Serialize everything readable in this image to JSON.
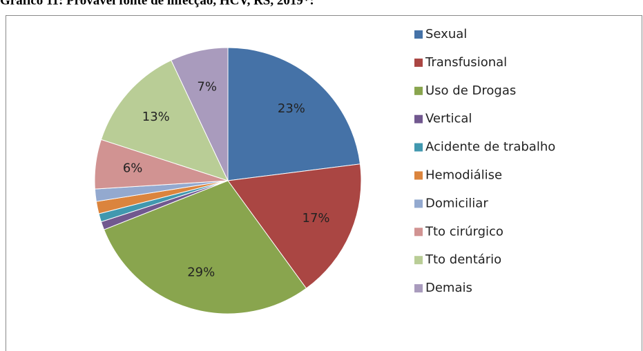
{
  "chart_data": {
    "type": "pie",
    "title": "Gráfico 11: Provável fonte de infecção, HCV, RS, 2019*:",
    "categories": [
      "Sexual",
      "Transfusional",
      "Uso de Drogas",
      "Vertical",
      "Acidente de trabalho",
      "Hemodiálise",
      "Domiciliar",
      "Tto cirúrgico",
      "Tto dentário",
      "Demais"
    ],
    "values": [
      23,
      17,
      29,
      1,
      1,
      1.5,
      1.5,
      6,
      13,
      7
    ],
    "value_labels": [
      "23%",
      "17%",
      "29%",
      null,
      null,
      null,
      null,
      "6%",
      "13%",
      "7%"
    ],
    "colors": [
      "#4572A7",
      "#AA4643",
      "#89A54E",
      "#71588F",
      "#4198AF",
      "#DB843D",
      "#93A9CF",
      "#D19392",
      "#B9CD96",
      "#A99BBD"
    ],
    "legend": "right"
  }
}
